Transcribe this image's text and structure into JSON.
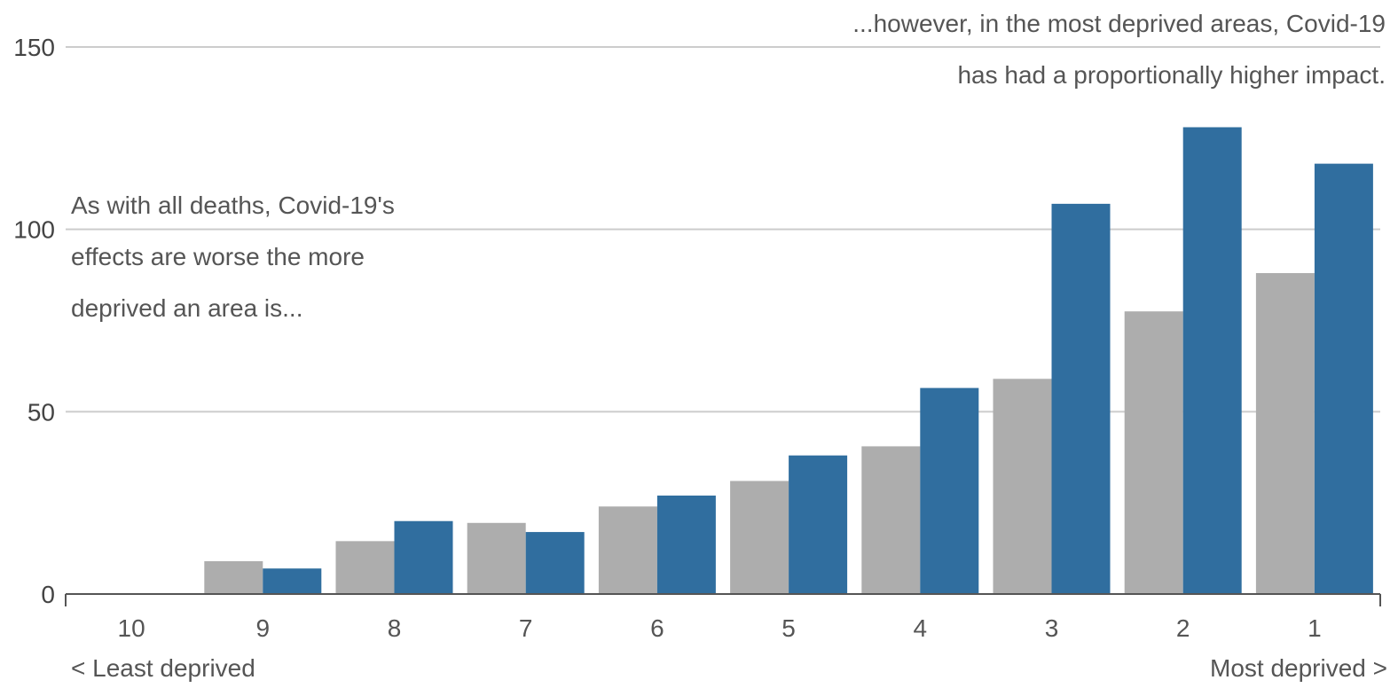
{
  "chart_data": {
    "type": "bar",
    "categories": [
      "10",
      "9",
      "8",
      "7",
      "6",
      "5",
      "4",
      "3",
      "2",
      "1"
    ],
    "series": [
      {
        "values": [
          0,
          9,
          14.5,
          19.5,
          24,
          31,
          40.5,
          59,
          77.5,
          88
        ]
      },
      {
        "values": [
          0,
          7,
          20,
          17,
          27,
          38,
          56.5,
          107,
          128,
          118
        ]
      }
    ],
    "colors": [
      "#adadad",
      "#306e9f"
    ],
    "yticks": [
      0,
      50,
      100,
      150
    ],
    "ylim": [
      0,
      150
    ],
    "grid": true,
    "annotations": {
      "left": [
        "As with all deaths, Covid-19's",
        "effects are worse the more",
        "deprived an area is..."
      ],
      "right": [
        "...however, in the most deprived areas, Covid-19",
        "has had a proportionally higher impact."
      ]
    },
    "axis_notes": {
      "left": "< Least deprived",
      "right": "Most deprived >"
    }
  }
}
